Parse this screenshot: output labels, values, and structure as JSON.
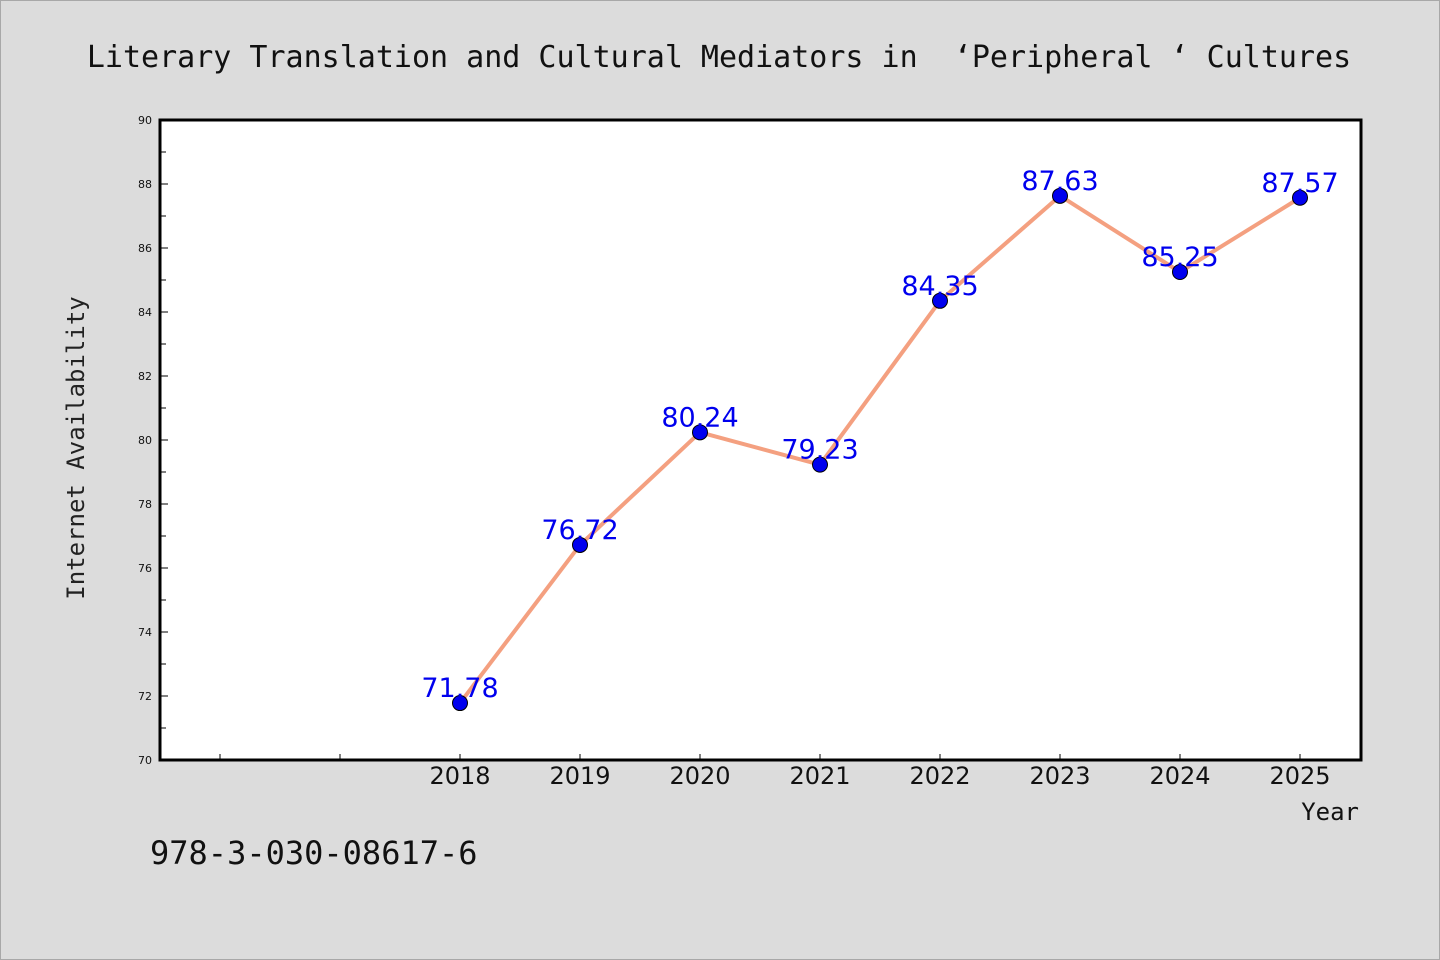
{
  "chart_data": {
    "type": "line",
    "title": "Literary Translation and Cultural Mediators in  ‘Peripheral ‘ Cultures",
    "xlabel": "Year",
    "ylabel": "Internet Availability",
    "x": [
      "2018",
      "2019",
      "2020",
      "2021",
      "2022",
      "2023",
      "2024",
      "2025"
    ],
    "values": [
      71.78,
      76.72,
      80.24,
      79.23,
      84.35,
      87.63,
      85.25,
      87.57
    ],
    "data_labels": [
      "71.78",
      "76.72",
      "80.24",
      "79.23",
      "84.35",
      "87.63",
      "85.25",
      "87.57"
    ],
    "ylim": [
      70,
      90
    ],
    "yticks": [
      "70",
      "72",
      "74",
      "76",
      "78",
      "80",
      "82",
      "84",
      "86",
      "88",
      "90"
    ],
    "grid": false,
    "line_color": "#f4a080",
    "marker_color": "#0000ee",
    "label_color": "#0000ee",
    "background_color": "#dcdcdc",
    "plot_background": "#ffffff"
  },
  "footer": {
    "isbn": "978-3-030-08617-6"
  }
}
